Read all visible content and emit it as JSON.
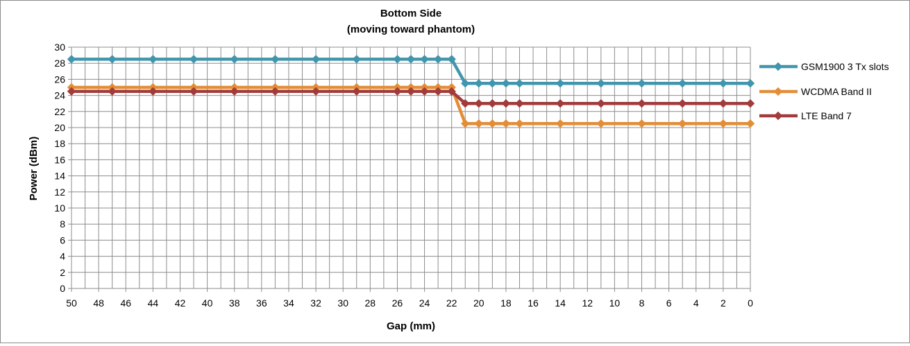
{
  "chart_data": {
    "type": "line",
    "title": "Bottom Side",
    "subtitle": "(moving toward phantom)",
    "xlabel": "Gap (mm)",
    "ylabel": "Power (dBm)",
    "x": [
      50,
      47,
      44,
      41,
      38,
      35,
      32,
      29,
      26,
      25,
      24,
      23,
      22,
      21,
      20,
      19,
      18,
      17,
      14,
      11,
      8,
      5,
      2,
      0
    ],
    "x_reversed": true,
    "xlim": [
      50,
      0
    ],
    "xticks": [
      50,
      48,
      46,
      44,
      42,
      40,
      38,
      36,
      34,
      32,
      30,
      28,
      26,
      24,
      22,
      20,
      18,
      16,
      14,
      12,
      10,
      8,
      6,
      4,
      2,
      0
    ],
    "ylim": [
      0,
      30
    ],
    "yticks": [
      0,
      2,
      4,
      6,
      8,
      10,
      12,
      14,
      16,
      18,
      20,
      22,
      24,
      26,
      28,
      30
    ],
    "grid": true,
    "legend_position": "right",
    "series": [
      {
        "name": "GSM1900 3 Tx slots",
        "color": "#4196ae",
        "values": [
          28.5,
          28.5,
          28.5,
          28.5,
          28.5,
          28.5,
          28.5,
          28.5,
          28.5,
          28.5,
          28.5,
          28.5,
          28.5,
          25.5,
          25.5,
          25.5,
          25.5,
          25.5,
          25.5,
          25.5,
          25.5,
          25.5,
          25.5,
          25.5
        ]
      },
      {
        "name": "WCDMA Band II",
        "color": "#e38d36",
        "values": [
          25.0,
          25.0,
          25.0,
          25.0,
          25.0,
          25.0,
          25.0,
          25.0,
          25.0,
          25.0,
          25.0,
          25.0,
          25.0,
          20.5,
          20.5,
          20.5,
          20.5,
          20.5,
          20.5,
          20.5,
          20.5,
          20.5,
          20.5,
          20.5
        ]
      },
      {
        "name": "LTE Band 7",
        "color": "#a23b3b",
        "values": [
          24.5,
          24.5,
          24.5,
          24.5,
          24.5,
          24.5,
          24.5,
          24.5,
          24.5,
          24.5,
          24.5,
          24.5,
          24.5,
          23.0,
          23.0,
          23.0,
          23.0,
          23.0,
          23.0,
          23.0,
          23.0,
          23.0,
          23.0,
          23.0
        ]
      }
    ]
  }
}
